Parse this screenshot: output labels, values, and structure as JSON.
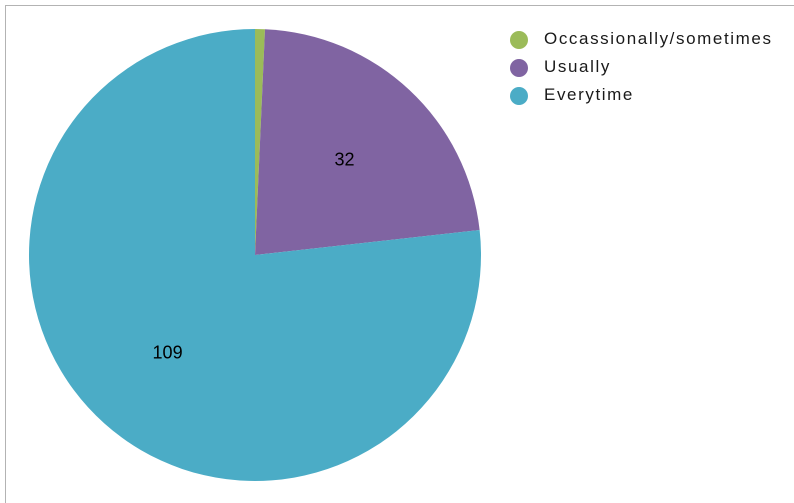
{
  "chart_data": {
    "type": "pie",
    "categories": [
      "Occassionally/sometimes",
      "Usually",
      "Everytime"
    ],
    "values": [
      1,
      32,
      109
    ],
    "data_labels": [
      "",
      "32",
      "109"
    ],
    "colors": [
      "#9bbb59",
      "#8064a2",
      "#4bacc6"
    ],
    "legend_placement": "right"
  }
}
